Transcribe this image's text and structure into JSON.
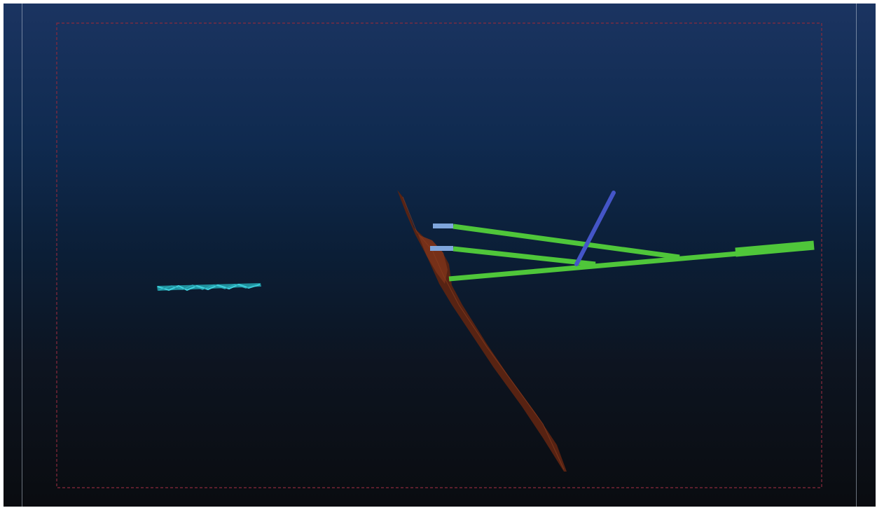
{
  "viewport": {
    "background_top": "#1b3461",
    "background_bottom": "#0a0c10",
    "frame_color": "#8a2a3c"
  },
  "scene": {
    "objects": [
      {
        "name": "cyan-vein",
        "color": "#2fb8c4"
      },
      {
        "name": "brown-fault-surface",
        "color": "#6a2a14"
      },
      {
        "name": "green-drillholes",
        "color": "#4fc63a"
      },
      {
        "name": "blue-drillhole",
        "color": "#4455c8"
      },
      {
        "name": "drillhole-collars",
        "color": "#7fa6dc"
      }
    ]
  }
}
